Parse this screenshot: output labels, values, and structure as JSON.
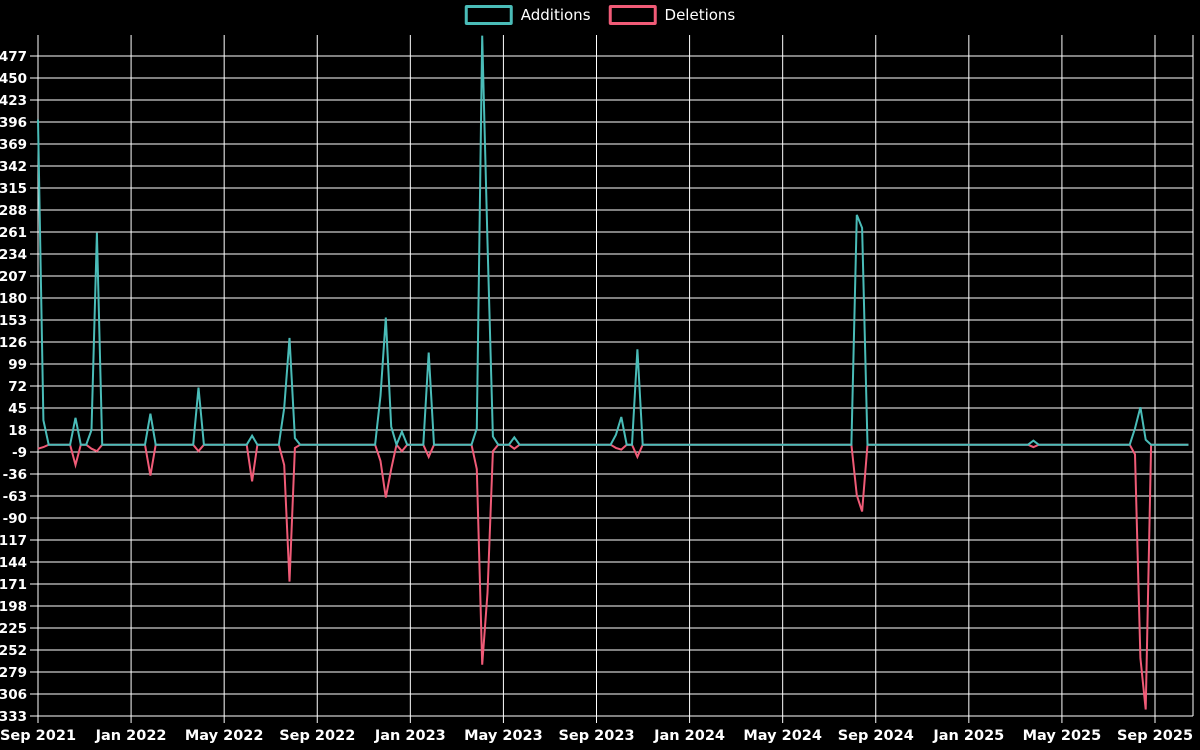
{
  "legend": {
    "items": [
      {
        "id": "additions",
        "label": "Additions",
        "color": "#4abcb8"
      },
      {
        "id": "deletions",
        "label": "Deletions",
        "color": "#f05b77"
      }
    ]
  },
  "colors": {
    "background": "#000000",
    "grid": "#ffffff",
    "text": "#ffffff",
    "additions": "#4abcb8",
    "deletions": "#f05b77"
  },
  "chart_data": {
    "type": "line",
    "description": "Weekly additions (positive) and deletions (negative) line chart on black background with white grid; all unlisted weeks are 0",
    "legend_position": "top-center",
    "grid": true,
    "x_axis": {
      "tick_labels": [
        "Sep 2021",
        "Jan 2022",
        "May 2022",
        "Sep 2022",
        "Jan 2023",
        "May 2023",
        "Sep 2023",
        "Jan 2024",
        "May 2024",
        "Sep 2024",
        "Jan 2025",
        "May 2025",
        "Sep 2025"
      ]
    },
    "y_axis": {
      "max": 477,
      "min": -333,
      "tick_step": 27,
      "ticks": [
        477,
        450,
        423,
        396,
        369,
        342,
        315,
        288,
        261,
        234,
        207,
        180,
        153,
        126,
        99,
        72,
        45,
        18,
        -9,
        -36,
        -63,
        -90,
        -117,
        -144,
        -171,
        -198,
        -225,
        -252,
        -279,
        -306,
        -333
      ]
    },
    "series_meta": [
      {
        "name": "Additions",
        "color": "#4abcb8"
      },
      {
        "name": "Deletions",
        "color": "#f05b77"
      }
    ],
    "weeks_total": 216,
    "baseline_value": 0,
    "events": [
      {
        "week": 0,
        "additions": 399,
        "deletions": -5
      },
      {
        "week": 1,
        "additions": 30,
        "deletions": -3
      },
      {
        "week": 7,
        "additions": 33,
        "deletions": -25
      },
      {
        "week": 10,
        "additions": 18,
        "deletions": -5
      },
      {
        "week": 11,
        "additions": 260,
        "deletions": -8
      },
      {
        "week": 21,
        "additions": 38,
        "deletions": -38
      },
      {
        "week": 30,
        "additions": 70,
        "deletions": -8
      },
      {
        "week": 40,
        "additions": 11,
        "deletions": -45
      },
      {
        "week": 46,
        "additions": 45,
        "deletions": -25
      },
      {
        "week": 47,
        "additions": 131,
        "deletions": -168
      },
      {
        "week": 48,
        "additions": 8,
        "deletions": -4
      },
      {
        "week": 64,
        "additions": 60,
        "deletions": -20
      },
      {
        "week": 65,
        "additions": 156,
        "deletions": -65
      },
      {
        "week": 66,
        "additions": 22,
        "deletions": -30
      },
      {
        "week": 68,
        "additions": 16,
        "deletions": -8
      },
      {
        "week": 73,
        "additions": 113,
        "deletions": -15
      },
      {
        "week": 82,
        "additions": 20,
        "deletions": -30
      },
      {
        "week": 83,
        "additions": 502,
        "deletions": -270
      },
      {
        "week": 84,
        "additions": 248,
        "deletions": -182
      },
      {
        "week": 85,
        "additions": 10,
        "deletions": -8
      },
      {
        "week": 89,
        "additions": 9,
        "deletions": -5
      },
      {
        "week": 108,
        "additions": 12,
        "deletions": -4
      },
      {
        "week": 109,
        "additions": 34,
        "deletions": -6
      },
      {
        "week": 112,
        "additions": 117,
        "deletions": -15
      },
      {
        "week": 153,
        "additions": 282,
        "deletions": -62
      },
      {
        "week": 154,
        "additions": 266,
        "deletions": -82
      },
      {
        "week": 186,
        "additions": 5,
        "deletions": -3
      },
      {
        "week": 205,
        "additions": 20,
        "deletions": -12
      },
      {
        "week": 206,
        "additions": 46,
        "deletions": -262
      },
      {
        "week": 207,
        "additions": 6,
        "deletions": -325
      }
    ]
  }
}
